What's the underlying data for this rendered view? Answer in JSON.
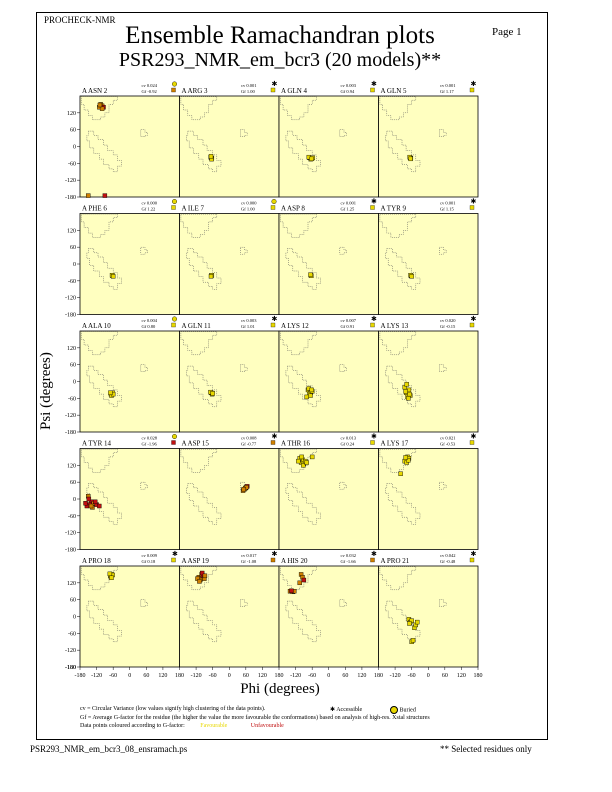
{
  "header": {
    "program": "PROCHECK-NMR",
    "page": "Page  1",
    "title_line1": "Ensemble Ramachandran plots",
    "title_line2": "PSR293_NMR_em_bcr3 (20 models)**"
  },
  "footer": {
    "filename": "PSR293_NMR_em_bcr3_08_ensramach.ps",
    "note": "** Selected residues only"
  },
  "legend": {
    "cv_text": "cv = Circular Variance (low values signify high clustering of the data points).",
    "accessible": "Accessible",
    "buried": "Buried",
    "gf_text": "Gf = Average G-factor for the residue (the higher the value the more favourable the conformations) based on analysis of high-res. Xstal structures",
    "colour_text": "Data points coloured according to G-factor:",
    "favourable": "Favourable",
    "unfavourable": "Unfavourable"
  },
  "colors": {
    "plot_bg": "#ffffc0",
    "favourable": "#e8d800",
    "mid": "#d08000",
    "unfavourable": "#c01010"
  },
  "chart_data": {
    "type": "scatter",
    "xlabel": "Phi (degrees)",
    "ylabel": "Psi (degrees)",
    "xlim": [
      -180,
      180
    ],
    "ylim": [
      -180,
      180
    ],
    "xticks": [
      -180,
      -120,
      -60,
      0,
      60,
      120,
      180
    ],
    "yticks": [
      -180,
      -120,
      -60,
      0,
      60,
      120
    ],
    "panels": [
      {
        "residue": "A ASN 2",
        "cv": "cv 0.024",
        "gf": "Gf -0.92",
        "acc": "buried",
        "gf_color": "mid",
        "points": [
          [
            -110,
            140
          ],
          [
            -100,
            145
          ],
          [
            -105,
            150
          ],
          [
            -95,
            140
          ],
          [
            -100,
            135
          ],
          [
            -108,
            148
          ],
          [
            -150,
            -175
          ],
          [
            -90,
            -175
          ]
        ]
      },
      {
        "residue": "A ARG 3",
        "cv": "cv 0.001",
        "gf": "Gf 1.00",
        "acc": "accessible",
        "gf_color": "fav",
        "points": [
          [
            -65,
            -40
          ],
          [
            -63,
            -42
          ],
          [
            -67,
            -38
          ],
          [
            -64,
            -45
          ],
          [
            -66,
            -35
          ]
        ]
      },
      {
        "residue": "A GLN 4",
        "cv": "cv 0.003",
        "gf": "Gf 0.94",
        "acc": "accessible",
        "gf_color": "fav",
        "points": [
          [
            -70,
            -40
          ],
          [
            -60,
            -42
          ],
          [
            -65,
            -45
          ],
          [
            -58,
            -40
          ],
          [
            -72,
            -38
          ],
          [
            -62,
            -44
          ]
        ]
      },
      {
        "residue": "A GLN 5",
        "cv": "cv 0.001",
        "gf": "Gf 1.17",
        "acc": "accessible",
        "gf_color": "fav",
        "points": [
          [
            -65,
            -40
          ],
          [
            -63,
            -42
          ],
          [
            -67,
            -38
          ],
          [
            -64,
            -44
          ]
        ]
      },
      {
        "residue": "A PHE 6",
        "cv": "cv 0.000",
        "gf": "Gf 1.22",
        "acc": "buried",
        "gf_color": "fav",
        "points": [
          [
            -62,
            -42
          ],
          [
            -64,
            -40
          ],
          [
            -60,
            -44
          ]
        ]
      },
      {
        "residue": "A ILE 7",
        "cv": "cv 0.000",
        "gf": "Gf 1.00",
        "acc": "buried",
        "gf_color": "fav",
        "points": [
          [
            -65,
            -42
          ],
          [
            -63,
            -40
          ],
          [
            -66,
            -44
          ]
        ]
      },
      {
        "residue": "A ASP 8",
        "cv": "cv 0.001",
        "gf": "Gf 1.25",
        "acc": "accessible",
        "gf_color": "fav",
        "points": [
          [
            -65,
            -40
          ],
          [
            -63,
            -42
          ],
          [
            -66,
            -38
          ]
        ]
      },
      {
        "residue": "A TYR 9",
        "cv": "cv 0.001",
        "gf": "Gf 1.15",
        "acc": "accessible",
        "gf_color": "fav",
        "points": [
          [
            -62,
            -42
          ],
          [
            -64,
            -40
          ],
          [
            -60,
            -44
          ]
        ]
      },
      {
        "residue": "A ALA 10",
        "cv": "cv 0.004",
        "gf": "Gf 0.80",
        "acc": "buried",
        "gf_color": "fav",
        "points": [
          [
            -68,
            -45
          ],
          [
            -62,
            -40
          ],
          [
            -66,
            -50
          ],
          [
            -60,
            -45
          ],
          [
            -70,
            -40
          ]
        ]
      },
      {
        "residue": "A GLN 11",
        "cv": "cv 0.003",
        "gf": "Gf 1.01",
        "acc": "accessible",
        "gf_color": "fav",
        "points": [
          [
            -65,
            -40
          ],
          [
            -62,
            -45
          ],
          [
            -68,
            -38
          ],
          [
            -60,
            -42
          ]
        ]
      },
      {
        "residue": "A LYS 12",
        "cv": "cv 0.007",
        "gf": "Gf 0.91",
        "acc": "accessible",
        "gf_color": "fav",
        "points": [
          [
            -75,
            -30
          ],
          [
            -65,
            -40
          ],
          [
            -70,
            -45
          ],
          [
            -60,
            -35
          ],
          [
            -80,
            -55
          ],
          [
            -72,
            -25
          ],
          [
            -66,
            -50
          ],
          [
            -62,
            -30
          ]
        ]
      },
      {
        "residue": "A LYS 13",
        "cv": "cv 0.020",
        "gf": "Gf -0.15",
        "acc": "accessible",
        "gf_color": "fav",
        "points": [
          [
            -85,
            -20
          ],
          [
            -80,
            -40
          ],
          [
            -75,
            -55
          ],
          [
            -70,
            -30
          ],
          [
            -65,
            -50
          ],
          [
            -78,
            -10
          ],
          [
            -72,
            -60
          ],
          [
            -68,
            -45
          ],
          [
            -82,
            -35
          ]
        ]
      },
      {
        "residue": "A TYR 14",
        "cv": "cv 0.028",
        "gf": "Gf -1.96",
        "acc": "buried",
        "gf_color": "unfav",
        "points": [
          [
            -150,
            10
          ],
          [
            -140,
            -10
          ],
          [
            -145,
            -20
          ],
          [
            -130,
            -15
          ],
          [
            -155,
            -25
          ],
          [
            -120,
            -20
          ],
          [
            -135,
            -30
          ],
          [
            -148,
            0
          ],
          [
            -125,
            -10
          ],
          [
            -140,
            -25
          ],
          [
            -160,
            -15
          ],
          [
            -110,
            -25
          ]
        ]
      },
      {
        "residue": "A ASP 15",
        "cv": "cv 0.008",
        "gf": "Gf -0.77",
        "acc": "accessible",
        "gf_color": "mid",
        "points": [
          [
            55,
            35
          ],
          [
            60,
            40
          ],
          [
            50,
            30
          ],
          [
            65,
            45
          ],
          [
            58,
            38
          ],
          [
            62,
            42
          ],
          [
            52,
            35
          ]
        ]
      },
      {
        "residue": "A THR 16",
        "cv": "cv 0.013",
        "gf": "Gf 0.24",
        "acc": "accessible",
        "gf_color": "fav",
        "points": [
          [
            -100,
            130
          ],
          [
            -95,
            140
          ],
          [
            -90,
            125
          ],
          [
            -105,
            145
          ],
          [
            -85,
            135
          ],
          [
            -110,
            135
          ],
          [
            -98,
            150
          ],
          [
            -92,
            120
          ],
          [
            -80,
            130
          ],
          [
            -60,
            150
          ]
        ]
      },
      {
        "residue": "A LYS 17",
        "cv": "cv 0.021",
        "gf": "Gf -0.53",
        "acc": "accessible",
        "gf_color": "fav",
        "points": [
          [
            -80,
            140
          ],
          [
            -75,
            150
          ],
          [
            -85,
            135
          ],
          [
            -70,
            145
          ],
          [
            -78,
            130
          ],
          [
            -72,
            138
          ],
          [
            -82,
            148
          ],
          [
            -100,
            90
          ]
        ]
      },
      {
        "residue": "A PRO 18",
        "cv": "cv 0.009",
        "gf": "Gf 0.18",
        "acc": "accessible",
        "gf_color": "fav",
        "points": [
          [
            -70,
            145
          ],
          [
            -65,
            150
          ],
          [
            -68,
            140
          ],
          [
            -62,
            148
          ],
          [
            -72,
            152
          ],
          [
            -66,
            138
          ]
        ]
      },
      {
        "residue": "A ASP 19",
        "cv": "cv 0.017",
        "gf": "Gf -1.08",
        "acc": "accessible",
        "gf_color": "mid",
        "points": [
          [
            -110,
            140
          ],
          [
            -100,
            150
          ],
          [
            -105,
            130
          ],
          [
            -95,
            145
          ],
          [
            -115,
            135
          ],
          [
            -90,
            135
          ],
          [
            -108,
            125
          ],
          [
            -98,
            155
          ],
          [
            -88,
            145
          ]
        ]
      },
      {
        "residue": "A HIS 20",
        "cv": "cv 0.032",
        "gf": "Gf -1.66",
        "acc": "accessible",
        "gf_color": "mid",
        "points": [
          [
            -100,
            150
          ],
          [
            -95,
            140
          ],
          [
            -105,
            120
          ],
          [
            -90,
            130
          ],
          [
            -140,
            90
          ],
          [
            -130,
            88
          ],
          [
            -125,
            90
          ],
          [
            -135,
            92
          ]
        ]
      },
      {
        "residue": "A PRO 21",
        "cv": "cv 0.042",
        "gf": "Gf -0.48",
        "acc": "accessible",
        "gf_color": "fav",
        "points": [
          [
            -70,
            -10
          ],
          [
            -65,
            -20
          ],
          [
            -60,
            -15
          ],
          [
            -50,
            -40
          ],
          [
            -45,
            -30
          ],
          [
            -60,
            -90
          ],
          [
            -55,
            -85
          ],
          [
            -68,
            -25
          ],
          [
            -40,
            -20
          ]
        ]
      }
    ]
  }
}
